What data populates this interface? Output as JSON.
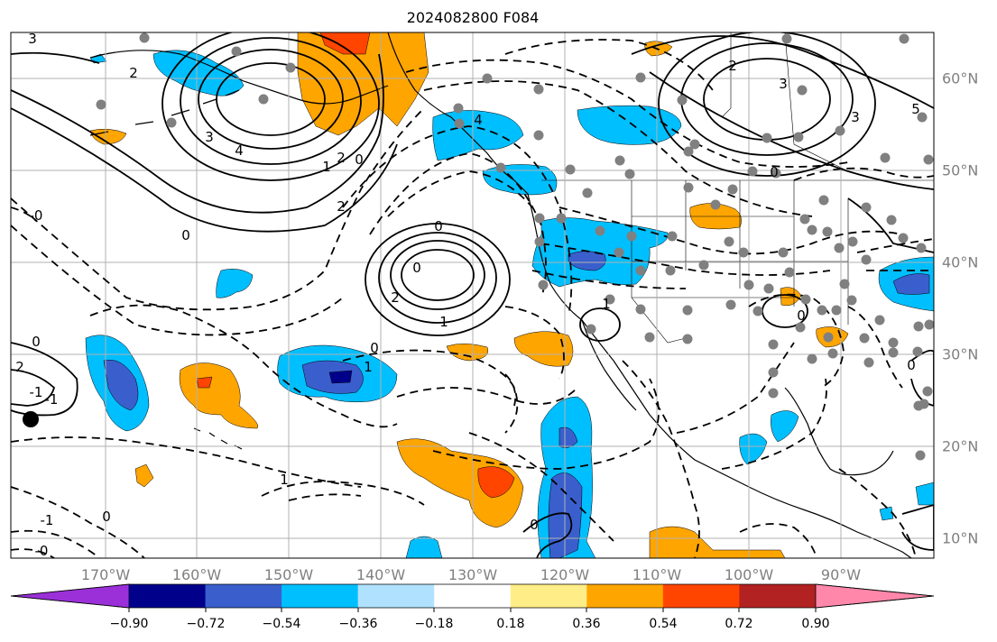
{
  "title": "2024082800 F084",
  "longitude_labels": [
    "170°W",
    "160°W",
    "150°W",
    "140°W",
    "130°W",
    "120°W",
    "110°W",
    "100°W",
    "90°W"
  ],
  "latitude_labels": [
    "60°N",
    "50°N",
    "40°N",
    "30°N",
    "20°N",
    "10°N"
  ],
  "colorbar": {
    "tick_labels": [
      "−0.90",
      "−0.72",
      "−0.54",
      "−0.36",
      "−0.18",
      "0.18",
      "0.36",
      "0.54",
      "0.72",
      "0.90"
    ],
    "colors": [
      "#9b30d9",
      "#00008b",
      "#3a5fcd",
      "#00bfff",
      "#b0e2ff",
      "#ffffff",
      "#ffee88",
      "#ffa500",
      "#ff4500",
      "#b22222",
      "#ff88aa"
    ]
  },
  "contour_labels": [
    "3",
    "2",
    "3",
    "4",
    "2",
    "1",
    "0",
    "0",
    "2",
    "1",
    "0",
    "0",
    "2",
    "1",
    "0",
    "-1",
    "0",
    "1",
    "0",
    "2",
    "3",
    "3",
    "5",
    "4",
    "2",
    "0",
    "0",
    "1",
    "-1",
    "-1",
    "0",
    "-0",
    "0",
    "-0"
  ],
  "colors": {
    "negative_fill": "#00bfff",
    "negative_fill_mid": "#3a5fcd",
    "negative_fill_strong": "#00008b",
    "positive_fill": "#ffa500",
    "positive_fill_strong": "#ff4500",
    "grid": "#b0b0b0",
    "station_dots": "#808080"
  }
}
